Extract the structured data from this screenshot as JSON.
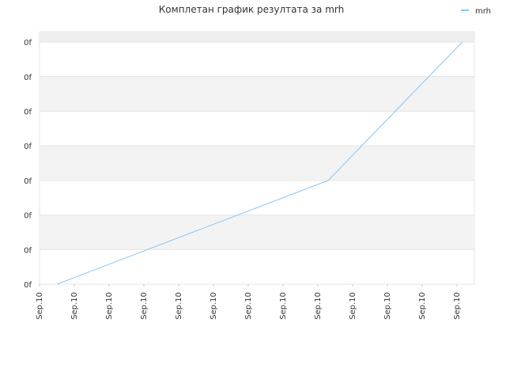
{
  "chart_data": {
    "type": "line",
    "title": "Комплетан график резултата за mrh",
    "x": [
      0.5,
      8.3,
      12.15
    ],
    "series": [
      {
        "name": "mrh",
        "color": "#8ec3f0",
        "values": [
          0,
          3,
          7
        ]
      }
    ],
    "xlim": [
      0,
      12.5
    ],
    "xticks": [
      {
        "value": 0,
        "label": "Sep.10"
      },
      {
        "value": 1,
        "label": "Sep.10"
      },
      {
        "value": 2,
        "label": "Sep.10"
      },
      {
        "value": 3,
        "label": "Sep.10"
      },
      {
        "value": 4,
        "label": "Sep.10"
      },
      {
        "value": 5,
        "label": "Sep.10"
      },
      {
        "value": 6,
        "label": "Sep.10"
      },
      {
        "value": 7,
        "label": "Sep.10"
      },
      {
        "value": 8,
        "label": "Sep.10"
      },
      {
        "value": 9,
        "label": "Sep.10"
      },
      {
        "value": 10,
        "label": "Sep.10"
      },
      {
        "value": 11,
        "label": "Sep.10"
      },
      {
        "value": 12,
        "label": "Sep.10"
      }
    ],
    "ylim": [
      0,
      7.3
    ],
    "yticks": [
      {
        "value": 0,
        "label": "0f"
      },
      {
        "value": 1,
        "label": "0f"
      },
      {
        "value": 2,
        "label": "0f"
      },
      {
        "value": 3,
        "label": "0f"
      },
      {
        "value": 4,
        "label": "0f"
      },
      {
        "value": 5,
        "label": "0f"
      },
      {
        "value": 6,
        "label": "0f"
      },
      {
        "value": 7,
        "label": "0f"
      }
    ],
    "grid": true,
    "legend": "top-right"
  }
}
